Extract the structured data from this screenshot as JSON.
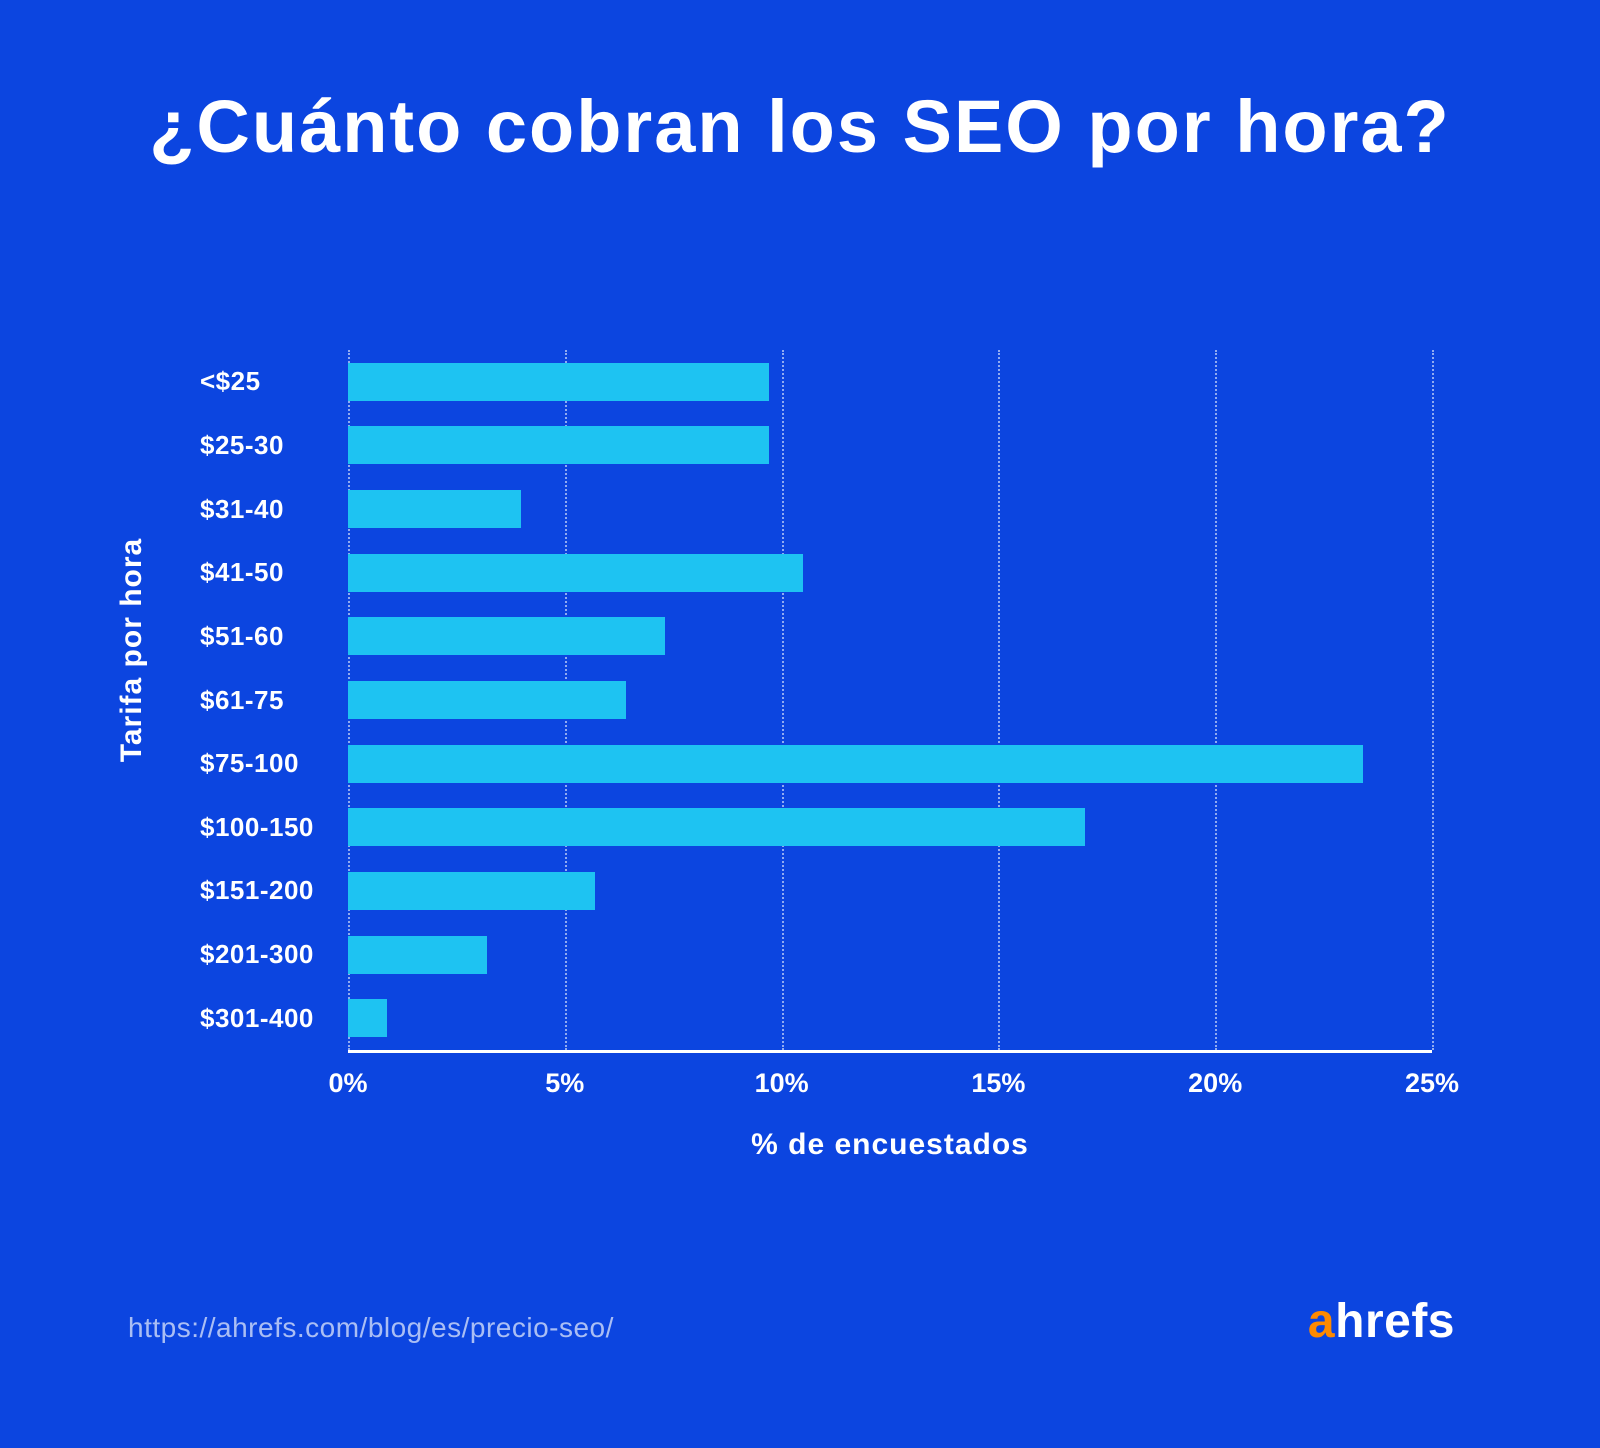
{
  "title": "¿Cuánto cobran los SEO por hora?",
  "colors": {
    "background": "#0c45e0",
    "bar": "#1ec3f2",
    "logo_accent": "#ff8a00",
    "text": "#ffffff"
  },
  "chart_data": {
    "type": "bar",
    "orientation": "horizontal",
    "title": "¿Cuánto cobran los SEO por hora?",
    "categories": [
      "<$25",
      "$25-30",
      "$31-40",
      "$41-50",
      "$51-60",
      "$61-75",
      "$75-100",
      "$100-150",
      "$151-200",
      "$201-300",
      "$301-400"
    ],
    "values": [
      9.7,
      9.7,
      4.0,
      10.5,
      7.3,
      6.4,
      23.4,
      17.0,
      5.7,
      3.2,
      0.9
    ],
    "xlabel": "% de encuestados",
    "ylabel": "Tarifa por hora",
    "xlim": [
      0,
      25
    ],
    "xticks": [
      "0%",
      "5%",
      "10%",
      "15%",
      "20%",
      "25%"
    ],
    "grid": "vertical-dotted",
    "legend": "none"
  },
  "footer": {
    "url": "https://ahrefs.com/blog/es/precio-seo/",
    "logo_a": "a",
    "logo_rest": "hrefs"
  }
}
